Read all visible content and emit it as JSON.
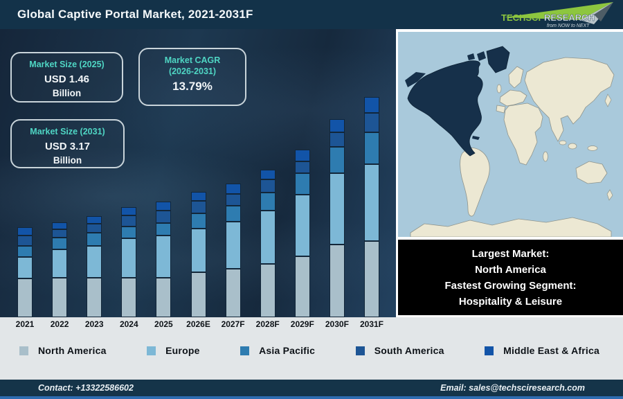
{
  "header": {
    "title": "Global Captive Portal Market, 2021-2031F",
    "logo": {
      "brand_primary": "TechSci",
      "brand_secondary": "Research",
      "tagline": "from NOW to NEXT",
      "accent_color": "#8dc63f"
    }
  },
  "cards": [
    {
      "title": "Market Size (2025)",
      "value": "USD 1.46",
      "unit": "Billion"
    },
    {
      "title": "Market CAGR\n(2026-2031)",
      "value": "13.79%",
      "unit": ""
    },
    {
      "title": "Market Size (2031)",
      "value": "USD 3.17",
      "unit": "Billion"
    }
  ],
  "chart_data": {
    "type": "bar",
    "stacked": true,
    "title": "Global Captive Portal Market, 2021-2031F",
    "categories": [
      "2021",
      "2022",
      "2023",
      "2024",
      "2025",
      "2026E",
      "2027F",
      "2028F",
      "2029F",
      "2030F",
      "2031F"
    ],
    "series": [
      {
        "name": "North America",
        "color": "#a9bfca",
        "values": [
          56,
          57,
          57,
          57,
          57,
          65,
          70,
          77,
          88,
          105,
          110
        ]
      },
      {
        "name": "Europe",
        "color": "#7db8d6",
        "values": [
          31,
          41,
          46,
          57,
          61,
          63,
          68,
          77,
          89,
          103,
          111
        ]
      },
      {
        "name": "Asia Pacific",
        "color": "#2e7cb0",
        "values": [
          16,
          17,
          19,
          17,
          18,
          22,
          23,
          26,
          31,
          38,
          46
        ]
      },
      {
        "name": "South America",
        "color": "#1d5595",
        "values": [
          15,
          12,
          13,
          16,
          18,
          18,
          17,
          19,
          17,
          21,
          28
        ]
      },
      {
        "name": "Middle East & Africa",
        "color": "#1254a8",
        "values": [
          12,
          10,
          11,
          12,
          13,
          13,
          15,
          14,
          17,
          19,
          23
        ]
      }
    ],
    "units": "relative bar-height units (no value axis shown in chart)",
    "value_axis": "none",
    "grid": false,
    "legend_position": "bottom",
    "known_anchors": {
      "2025_total": "USD 1.46 Billion",
      "2031_total": "USD 3.17 Billion",
      "cagr_2026_2031": "13.79%"
    }
  },
  "map": {
    "highlight_region": "North America",
    "ocean_color": "#a9c9db",
    "land_color": "#ece8d3",
    "land_outline": "#8f948c",
    "highlight_color": "#16304a"
  },
  "info_box": {
    "lines": [
      "Largest Market:",
      "North America",
      "Fastest Growing Segment:",
      "Hospitality & Leisure"
    ]
  },
  "footer": {
    "contact": "Contact: +13322586602",
    "email": "Email: sales@techsciresearch.com"
  },
  "colors": {
    "header_bg": "#133249",
    "chart_bg": "#1a3047",
    "teal_accent": "#4fd6c4",
    "bottom_band_bg": "#e2e6e8",
    "footer_bg": "#153449",
    "footer_stripe": "#2e6cb0",
    "info_box_bg": "#000000"
  }
}
